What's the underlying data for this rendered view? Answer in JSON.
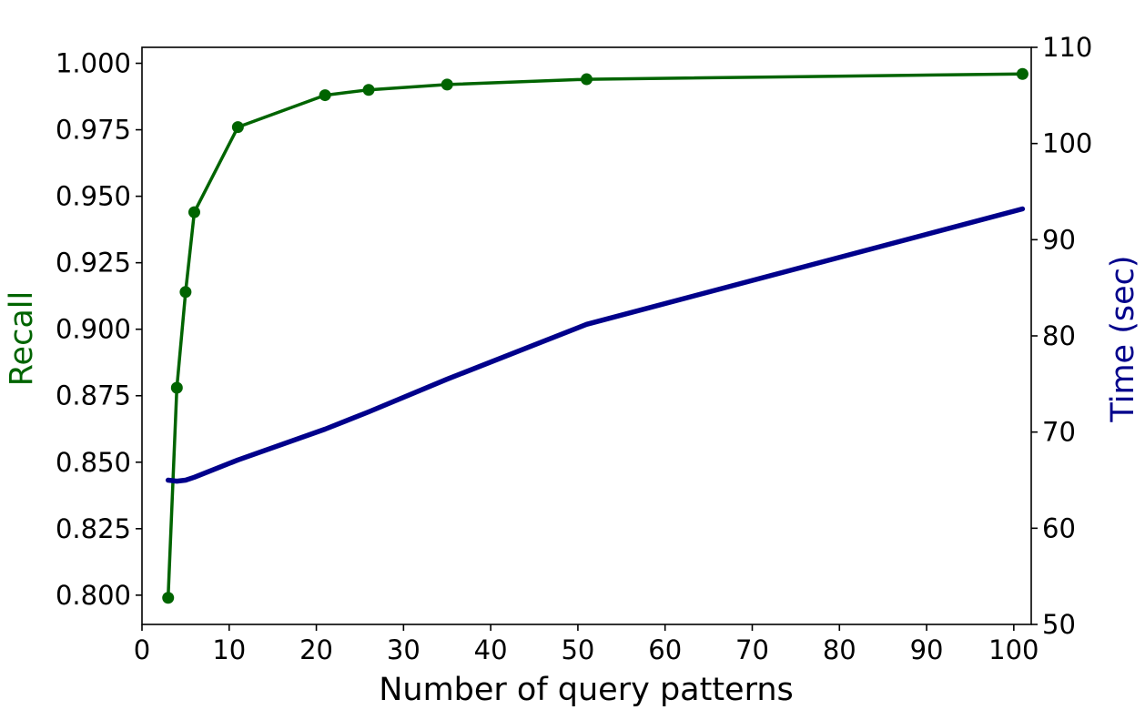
{
  "chart_data": {
    "type": "line",
    "xlabel": "Number of query patterns",
    "xlim": [
      0,
      102
    ],
    "x_ticks": [
      "0",
      "10",
      "20",
      "30",
      "40",
      "50",
      "60",
      "70",
      "80",
      "90",
      "100"
    ],
    "x_tick_values": [
      0,
      10,
      20,
      30,
      40,
      50,
      60,
      70,
      80,
      90,
      100
    ],
    "y_left": {
      "label": "Recall",
      "color": "#006400",
      "lim": [
        0.789,
        1.006
      ],
      "ticks": [
        "0.800",
        "0.825",
        "0.850",
        "0.875",
        "0.900",
        "0.925",
        "0.950",
        "0.975",
        "1.000"
      ],
      "tick_values": [
        0.8,
        0.825,
        0.85,
        0.875,
        0.9,
        0.925,
        0.95,
        0.975,
        1.0
      ]
    },
    "y_right": {
      "label": "Time (sec)",
      "color": "#00008b",
      "lim": [
        50,
        110
      ],
      "ticks": [
        "50",
        "60",
        "70",
        "80",
        "90",
        "100",
        "110"
      ],
      "tick_values": [
        50,
        60,
        70,
        80,
        90,
        100,
        110
      ]
    },
    "series": [
      {
        "axis": "left",
        "color": "#006400",
        "markers": true,
        "x": [
          3,
          4,
          5,
          6,
          11,
          21,
          26,
          35,
          51,
          101
        ],
        "y": [
          0.799,
          0.878,
          0.914,
          0.944,
          0.976,
          0.988,
          0.99,
          0.992,
          0.994,
          0.996
        ]
      },
      {
        "axis": "right",
        "color": "#00008b",
        "markers": false,
        "x": [
          3,
          4,
          5,
          6,
          11,
          21,
          26,
          35,
          51,
          101
        ],
        "y": [
          65.0,
          64.9,
          65.0,
          65.3,
          67.1,
          70.3,
          72.1,
          75.5,
          81.2,
          93.2
        ]
      }
    ]
  }
}
